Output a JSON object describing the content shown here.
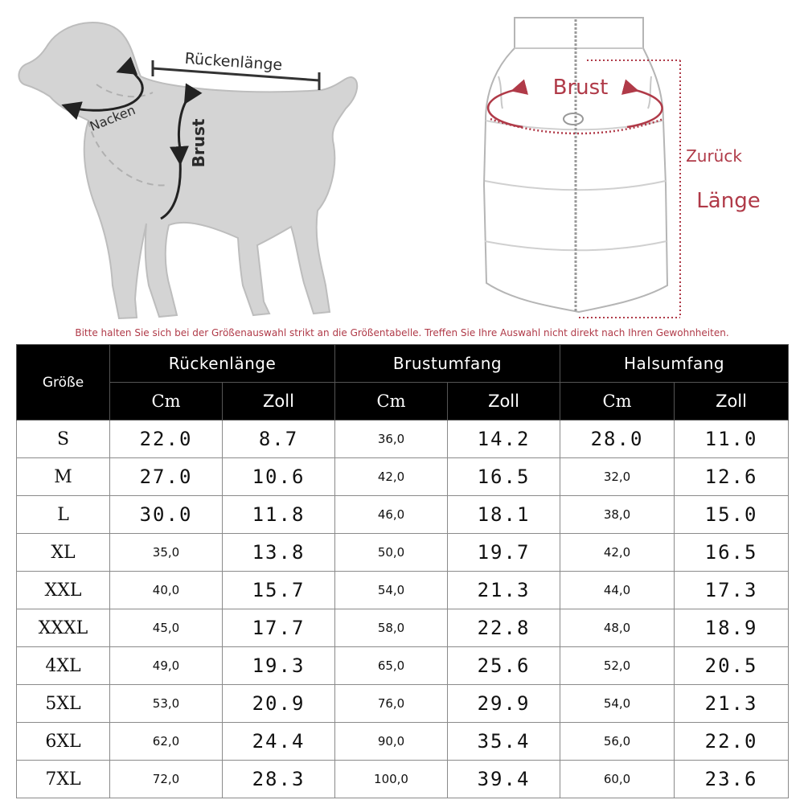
{
  "diagram": {
    "dog_labels": {
      "back_length": "Rückenlänge",
      "neck": "Nacken",
      "chest": "Brust"
    },
    "vest_labels": {
      "chest": "Brust",
      "back": "Zurück",
      "length": "Länge"
    },
    "colors": {
      "dog_fill": "#d4d4d4",
      "vest_outline": "#b5b5b5",
      "accent_red": "#b03a48"
    }
  },
  "notice": "Bitte halten Sie sich bei der Größenauswahl strikt an die Größentabelle. Treffen Sie Ihre Auswahl nicht direkt nach Ihren Gewohnheiten.",
  "table": {
    "size_header": "Größe",
    "groups": [
      {
        "label": "Rückenlänge",
        "cm": "Cm",
        "inch": "Zoll"
      },
      {
        "label": "Brustumfang",
        "cm": "Cm",
        "inch": "Zoll"
      },
      {
        "label": "Halsumfang",
        "cm": "Cm",
        "inch": "Zoll"
      }
    ],
    "rows": [
      {
        "size": "S",
        "back_cm": "22.0",
        "back_in": "8.7",
        "chest_cm": "36,0",
        "chest_in": "14.2",
        "neck_cm": "28.0",
        "neck_in": "11.0"
      },
      {
        "size": "M",
        "back_cm": "27.0",
        "back_in": "10.6",
        "chest_cm": "42,0",
        "chest_in": "16.5",
        "neck_cm": "32,0",
        "neck_in": "12.6"
      },
      {
        "size": "L",
        "back_cm": "30.0",
        "back_in": "11.8",
        "chest_cm": "46,0",
        "chest_in": "18.1",
        "neck_cm": "38,0",
        "neck_in": "15.0"
      },
      {
        "size": "XL",
        "back_cm": "35,0",
        "back_in": "13.8",
        "chest_cm": "50,0",
        "chest_in": "19.7",
        "neck_cm": "42,0",
        "neck_in": "16.5"
      },
      {
        "size": "XXL",
        "back_cm": "40,0",
        "back_in": "15.7",
        "chest_cm": "54,0",
        "chest_in": "21.3",
        "neck_cm": "44,0",
        "neck_in": "17.3"
      },
      {
        "size": "XXXL",
        "back_cm": "45,0",
        "back_in": "17.7",
        "chest_cm": "58,0",
        "chest_in": "22.8",
        "neck_cm": "48,0",
        "neck_in": "18.9"
      },
      {
        "size": "4XL",
        "back_cm": "49,0",
        "back_in": "19.3",
        "chest_cm": "65,0",
        "chest_in": "25.6",
        "neck_cm": "52,0",
        "neck_in": "20.5"
      },
      {
        "size": "5XL",
        "back_cm": "53,0",
        "back_in": "20.9",
        "chest_cm": "76,0",
        "chest_in": "29.9",
        "neck_cm": "54,0",
        "neck_in": "21.3"
      },
      {
        "size": "6XL",
        "back_cm": "62,0",
        "back_in": "24.4",
        "chest_cm": "90,0",
        "chest_in": "35.4",
        "neck_cm": "56,0",
        "neck_in": "22.0"
      },
      {
        "size": "7XL",
        "back_cm": "72,0",
        "back_in": "28.3",
        "chest_cm": "100,0",
        "chest_in": "39.4",
        "neck_cm": "60,0",
        "neck_in": "23.6"
      }
    ]
  }
}
